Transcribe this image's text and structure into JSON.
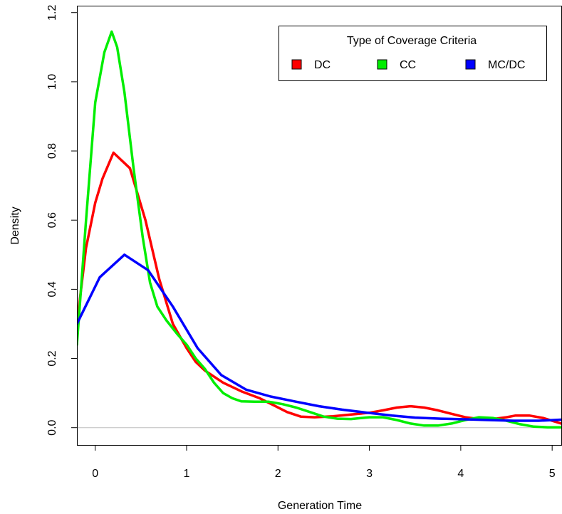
{
  "chart_data": {
    "type": "line",
    "xlabel": "Generation Time",
    "ylabel": "Density",
    "xlim": [
      -0.2,
      5.1
    ],
    "ylim": [
      -0.05,
      1.22
    ],
    "x_ticks": [
      0,
      1,
      2,
      3,
      4,
      5
    ],
    "y_ticks": [
      0.0,
      0.2,
      0.4,
      0.6,
      0.8,
      1.0,
      1.2
    ],
    "x_tick_labels": [
      "0",
      "1",
      "2",
      "3",
      "4",
      "5"
    ],
    "y_tick_labels": [
      "0.0",
      "0.2",
      "0.4",
      "0.6",
      "0.8",
      "1.0",
      "1.2"
    ],
    "zero_line": true,
    "legend": {
      "title": "Type of Coverage Criteria",
      "position": "top-right"
    },
    "series": [
      {
        "name": "DC",
        "color": "#ff0000",
        "points": [
          [
            -0.2,
            0.3
          ],
          [
            -0.1,
            0.52
          ],
          [
            0.0,
            0.65
          ],
          [
            0.08,
            0.72
          ],
          [
            0.2,
            0.795
          ],
          [
            0.38,
            0.75
          ],
          [
            0.55,
            0.6
          ],
          [
            0.7,
            0.43
          ],
          [
            0.85,
            0.3
          ],
          [
            1.0,
            0.23
          ],
          [
            1.1,
            0.19
          ],
          [
            1.2,
            0.165
          ],
          [
            1.4,
            0.13
          ],
          [
            1.6,
            0.105
          ],
          [
            1.8,
            0.085
          ],
          [
            1.95,
            0.065
          ],
          [
            2.1,
            0.045
          ],
          [
            2.25,
            0.032
          ],
          [
            2.4,
            0.03
          ],
          [
            2.6,
            0.033
          ],
          [
            2.8,
            0.038
          ],
          [
            3.0,
            0.043
          ],
          [
            3.15,
            0.05
          ],
          [
            3.3,
            0.058
          ],
          [
            3.45,
            0.062
          ],
          [
            3.6,
            0.058
          ],
          [
            3.75,
            0.05
          ],
          [
            3.9,
            0.04
          ],
          [
            4.05,
            0.03
          ],
          [
            4.2,
            0.025
          ],
          [
            4.35,
            0.025
          ],
          [
            4.5,
            0.03
          ],
          [
            4.6,
            0.035
          ],
          [
            4.75,
            0.035
          ],
          [
            4.9,
            0.028
          ],
          [
            5.1,
            0.012
          ]
        ]
      },
      {
        "name": "CC",
        "color": "#00ee00",
        "points": [
          [
            -0.2,
            0.24
          ],
          [
            -0.1,
            0.6
          ],
          [
            0.0,
            0.94
          ],
          [
            0.1,
            1.085
          ],
          [
            0.18,
            1.145
          ],
          [
            0.24,
            1.1
          ],
          [
            0.32,
            0.97
          ],
          [
            0.42,
            0.75
          ],
          [
            0.52,
            0.55
          ],
          [
            0.6,
            0.42
          ],
          [
            0.68,
            0.35
          ],
          [
            0.78,
            0.31
          ],
          [
            0.9,
            0.27
          ],
          [
            1.0,
            0.24
          ],
          [
            1.1,
            0.2
          ],
          [
            1.2,
            0.17
          ],
          [
            1.3,
            0.13
          ],
          [
            1.4,
            0.1
          ],
          [
            1.5,
            0.085
          ],
          [
            1.6,
            0.076
          ],
          [
            1.75,
            0.075
          ],
          [
            1.9,
            0.075
          ],
          [
            2.05,
            0.068
          ],
          [
            2.2,
            0.058
          ],
          [
            2.35,
            0.045
          ],
          [
            2.5,
            0.032
          ],
          [
            2.65,
            0.026
          ],
          [
            2.8,
            0.025
          ],
          [
            3.0,
            0.03
          ],
          [
            3.15,
            0.03
          ],
          [
            3.3,
            0.022
          ],
          [
            3.45,
            0.012
          ],
          [
            3.6,
            0.006
          ],
          [
            3.75,
            0.006
          ],
          [
            3.9,
            0.012
          ],
          [
            4.05,
            0.022
          ],
          [
            4.2,
            0.03
          ],
          [
            4.35,
            0.028
          ],
          [
            4.5,
            0.02
          ],
          [
            4.65,
            0.01
          ],
          [
            4.8,
            0.003
          ],
          [
            4.95,
            0.001
          ],
          [
            5.1,
            0.001
          ]
        ]
      },
      {
        "name": "MC/DC",
        "color": "#0000ff",
        "points": [
          [
            -0.2,
            0.3
          ],
          [
            0.05,
            0.435
          ],
          [
            0.32,
            0.5
          ],
          [
            0.58,
            0.455
          ],
          [
            0.85,
            0.35
          ],
          [
            1.12,
            0.23
          ],
          [
            1.38,
            0.152
          ],
          [
            1.65,
            0.11
          ],
          [
            1.92,
            0.09
          ],
          [
            2.2,
            0.075
          ],
          [
            2.45,
            0.062
          ],
          [
            2.7,
            0.052
          ],
          [
            2.98,
            0.043
          ],
          [
            3.25,
            0.035
          ],
          [
            3.5,
            0.029
          ],
          [
            3.78,
            0.026
          ],
          [
            4.05,
            0.024
          ],
          [
            4.3,
            0.022
          ],
          [
            4.58,
            0.02
          ],
          [
            4.85,
            0.02
          ],
          [
            5.1,
            0.023
          ]
        ]
      }
    ]
  }
}
